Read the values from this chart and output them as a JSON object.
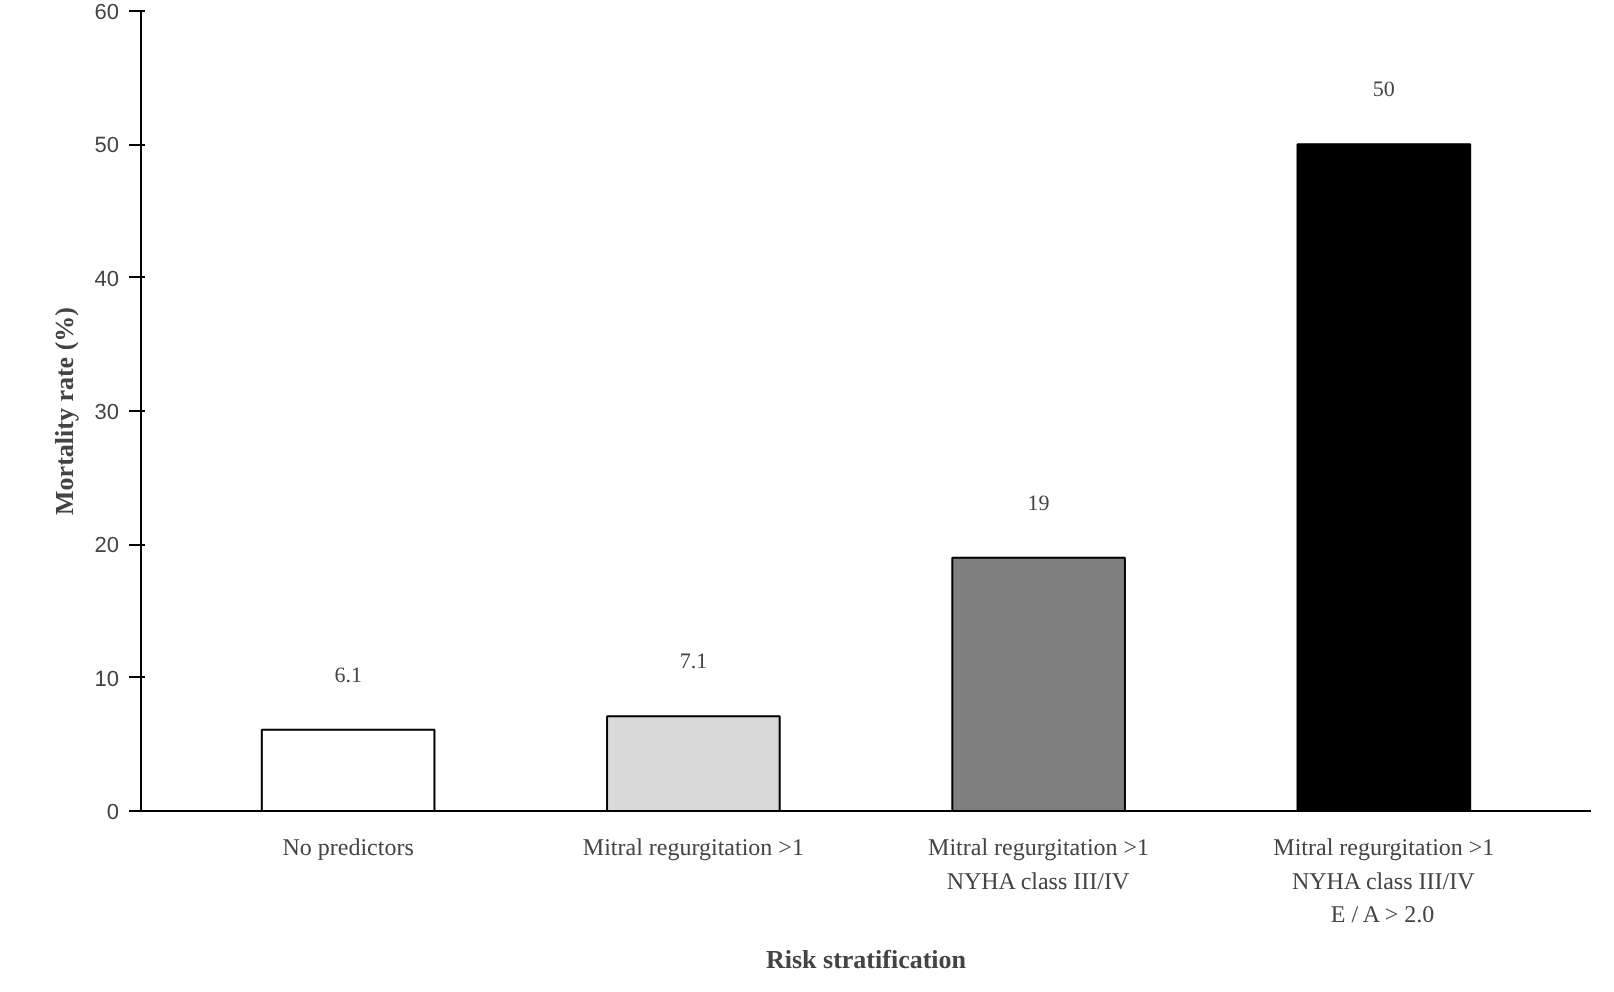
{
  "chart_data": {
    "type": "bar",
    "xlabel": "Risk stratification",
    "ylabel": "Mortality rate (%)",
    "categories": [
      "No predictors",
      "Mitral regurgitation >1",
      "Mitral regurgitation >1\nNYHA class III/IV",
      "Mitral regurgitation >1\nNYHA class III/IV\nE / A > 2.0"
    ],
    "values": [
      6.1,
      7.1,
      19,
      50
    ],
    "colors": [
      "#ffffff",
      "#d9d9d9",
      "#7f7f7f",
      "#000000"
    ],
    "ylim": [
      0,
      60
    ],
    "yticks": [
      0,
      10,
      20,
      30,
      40,
      50,
      60
    ],
    "grid": false,
    "data_labels": true
  }
}
